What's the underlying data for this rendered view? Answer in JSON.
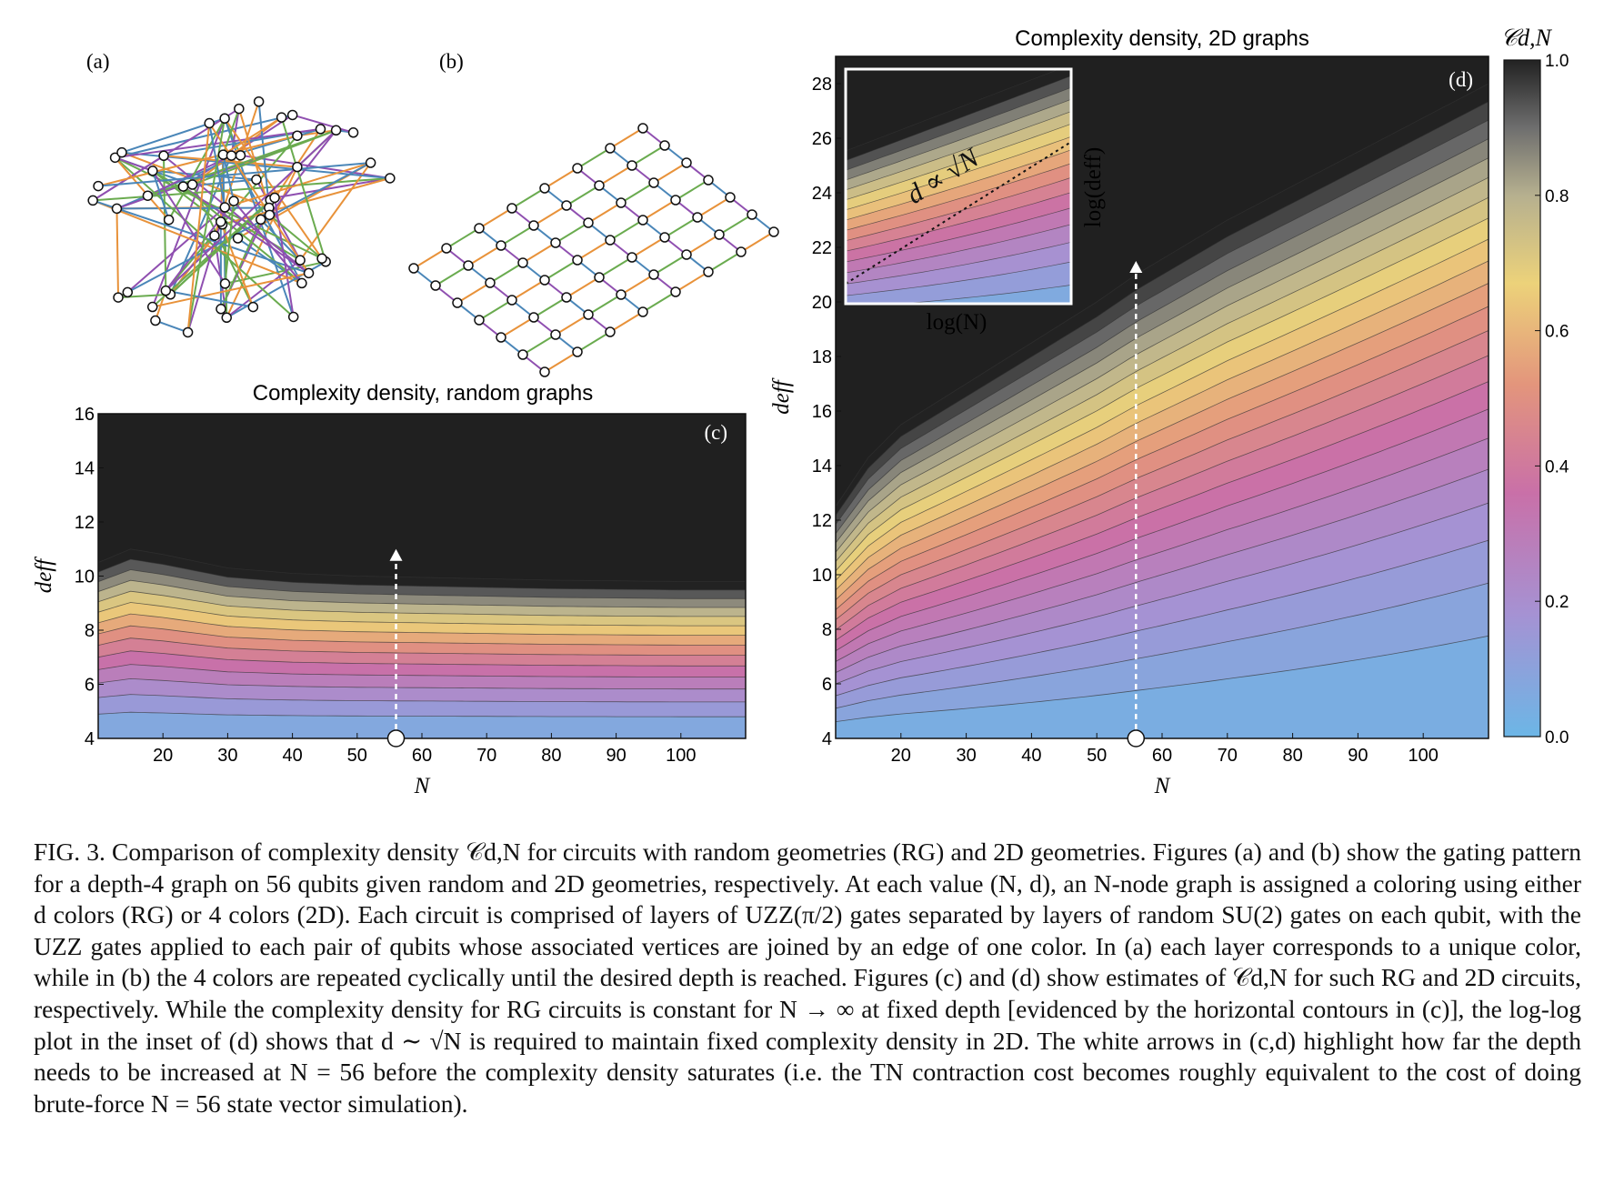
{
  "figure": {
    "panel_a_label": "(a)",
    "panel_b_label": "(b)",
    "panel_c_label": "(c)",
    "panel_d_label": "(d)",
    "colorbar_label": "𝒞d,N",
    "colorbar_ticks": [
      "0.0",
      "0.2",
      "0.4",
      "0.6",
      "0.8",
      "1.0"
    ],
    "inset": {
      "xlabel": "log(N)",
      "ylabel": "log(deff)",
      "annotation": "d ∝ √N"
    }
  },
  "caption": {
    "text": "FIG. 3. Comparison of complexity density 𝒞d,N for circuits with random geometries (RG) and 2D geometries. Figures (a) and (b) show the gating pattern for a depth-4 graph on 56 qubits given random and 2D geometries, respectively. At each value (N, d), an N-node graph is assigned a coloring using either d colors (RG) or 4 colors (2D). Each circuit is comprised of layers of UZZ(π/2) gates separated by layers of random SU(2) gates on each qubit, with the UZZ gates applied to each pair of qubits whose associated vertices are joined by an edge of one color. In (a) each layer corresponds to a unique color, while in (b) the 4 colors are repeated cyclically until the desired depth is reached. Figures (c) and (d) show estimates of 𝒞d,N for such RG and 2D circuits, respectively. While the complexity density for RG circuits is constant for N → ∞ at fixed depth [evidenced by the horizontal contours in (c)], the log-log plot in the inset of (d) shows that d ∼ √N is required to maintain fixed complexity density in 2D. The white arrows in (c,d) highlight how far the depth needs to be increased at N = 56 before the complexity density saturates (i.e. the TN contraction cost becomes roughly equivalent to the cost of doing brute-force N = 56 state vector simulation)."
  },
  "chart_data": [
    {
      "type": "heatmap",
      "title": "Complexity density, random graphs",
      "xlabel": "N",
      "ylabel": "deff",
      "xlim": [
        10,
        110
      ],
      "ylim": [
        4,
        16
      ],
      "xticks": [
        "20",
        "30",
        "40",
        "50",
        "60",
        "70",
        "80",
        "90",
        "100"
      ],
      "yticks": [
        "4",
        "6",
        "8",
        "10",
        "12",
        "14",
        "16"
      ],
      "saturation_boundary": {
        "N": [
          10,
          15,
          20,
          30,
          40,
          50,
          60,
          80,
          100,
          110
        ],
        "deff": [
          10.5,
          11.0,
          10.8,
          10.3,
          10.1,
          10.0,
          9.95,
          9.85,
          9.8,
          9.8
        ]
      },
      "arrow": {
        "N": 56,
        "d_start": 4,
        "d_end": 11.0
      }
    },
    {
      "type": "heatmap",
      "title": "Complexity density, 2D graphs",
      "xlabel": "N",
      "ylabel": "deff",
      "xlim": [
        10,
        110
      ],
      "ylim": [
        4,
        29
      ],
      "xticks": [
        "20",
        "30",
        "40",
        "50",
        "60",
        "70",
        "80",
        "90",
        "100"
      ],
      "yticks": [
        "4",
        "6",
        "8",
        "10",
        "12",
        "14",
        "16",
        "18",
        "20",
        "22",
        "24",
        "26",
        "28"
      ],
      "saturation_boundary": {
        "N": [
          10,
          15,
          20,
          30,
          40,
          50,
          56,
          70,
          90,
          110
        ],
        "deff": [
          12.5,
          14.3,
          15.5,
          17.0,
          18.5,
          20.0,
          21.0,
          23.0,
          25.5,
          28.0
        ]
      },
      "arrow": {
        "N": 56,
        "d_start": 4,
        "d_end": 21.5
      },
      "colorbar": {
        "label": "𝒞d,N",
        "range": [
          0.0,
          1.0
        ],
        "ticks": [
          0.0,
          0.2,
          0.4,
          0.6,
          0.8,
          1.0
        ]
      }
    }
  ]
}
